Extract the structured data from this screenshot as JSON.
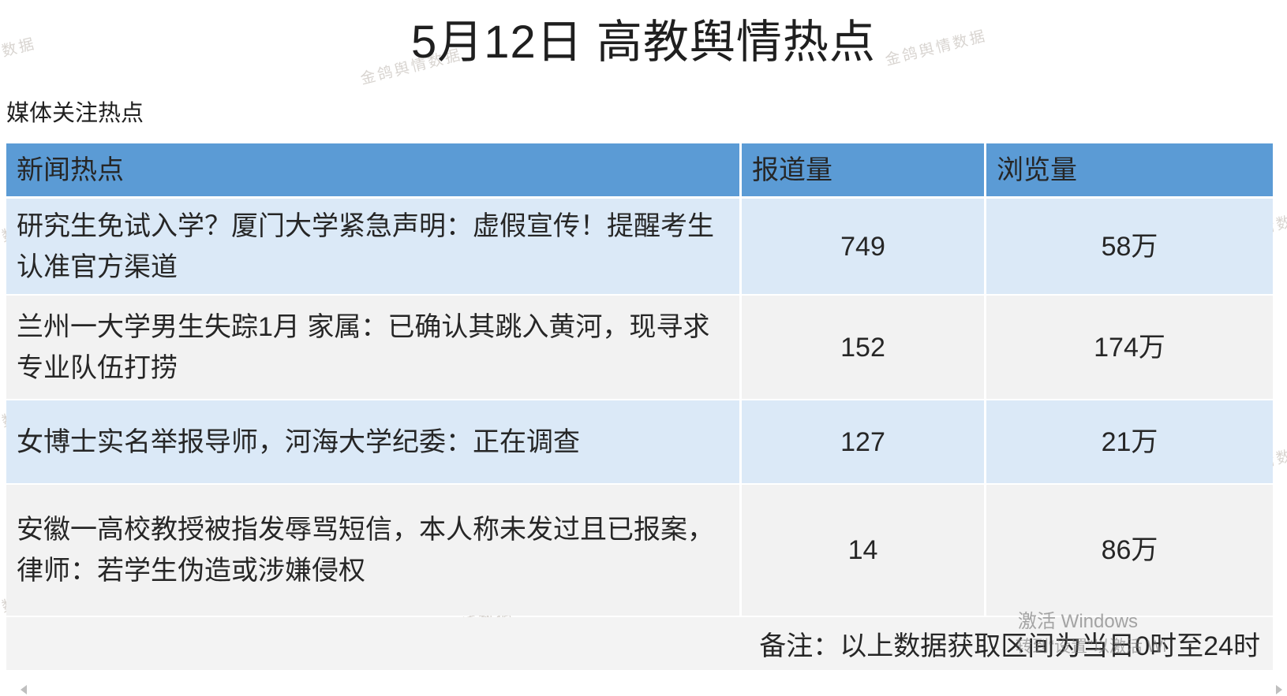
{
  "page": {
    "title": "5月12日 高教舆情热点",
    "section_label": "媒体关注热点",
    "watermark_text": "金鸽舆情数据"
  },
  "table": {
    "headers": [
      "新闻热点",
      "报道量",
      "浏览量"
    ],
    "rows": [
      {
        "topic": "研究生免试入学？厦门大学紧急声明：虚假宣传！提醒考生认准官方渠道",
        "reports": "749",
        "views": "58万"
      },
      {
        "topic": "兰州一大学男生失踪1月 家属：已确认其跳入黄河，现寻求专业队伍打捞",
        "reports": "152",
        "views": "174万"
      },
      {
        "topic": "女博士实名举报导师，河海大学纪委：正在调查",
        "reports": "127",
        "views": "21万"
      },
      {
        "topic": "安徽一高校教授被指发辱骂短信，本人称未发过且已报案，律师：若学生伪造或涉嫌侵权",
        "reports": "14",
        "views": "86万"
      }
    ],
    "footer_note": "备注：以上数据获取区间为当日0时至24时"
  },
  "os_overlay": {
    "activate_line1": "激活 Windows",
    "activate_line2": "转到“设置”以激活 Wi"
  },
  "colors": {
    "header_bg": "#5B9BD5",
    "row_blue": "#DBE9F7",
    "row_gray": "#F2F2F2",
    "text": "#262626"
  }
}
